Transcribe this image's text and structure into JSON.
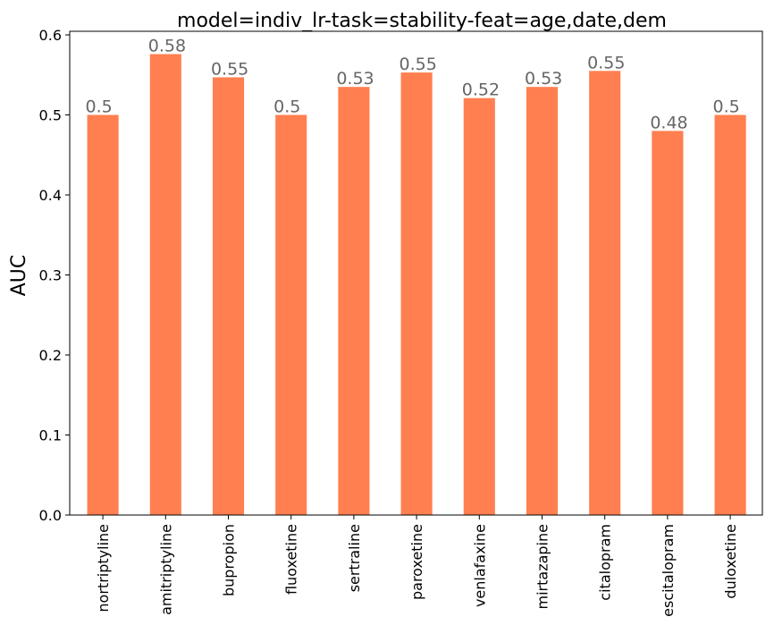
{
  "chart_data": {
    "type": "bar",
    "title": "model=indiv_lr-task=stability-feat=age,date,dem",
    "xlabel": "",
    "ylabel": "AUC",
    "categories": [
      "nortriptyline",
      "amitriptyline",
      "bupropion",
      "fluoxetine",
      "sertraline",
      "paroxetine",
      "venlafaxine",
      "mirtazapine",
      "citalopram",
      "escitalopram",
      "duloxetine"
    ],
    "values": [
      0.5,
      0.576,
      0.547,
      0.5,
      0.535,
      0.553,
      0.521,
      0.535,
      0.555,
      0.48,
      0.5
    ],
    "data_labels": [
      "0.5",
      "0.58",
      "0.55",
      "0.5",
      "0.53",
      "0.55",
      "0.52",
      "0.53",
      "0.55",
      "0.48",
      "0.5"
    ],
    "ylim": [
      0,
      0.6
    ],
    "yticks": [
      "0.0",
      "0.1",
      "0.2",
      "0.3",
      "0.4",
      "0.5",
      "0.6"
    ],
    "grid": false,
    "legend": "none",
    "colors": {
      "bar": "#ff7f50",
      "data_label": "#666666",
      "axis": "#000000"
    }
  }
}
